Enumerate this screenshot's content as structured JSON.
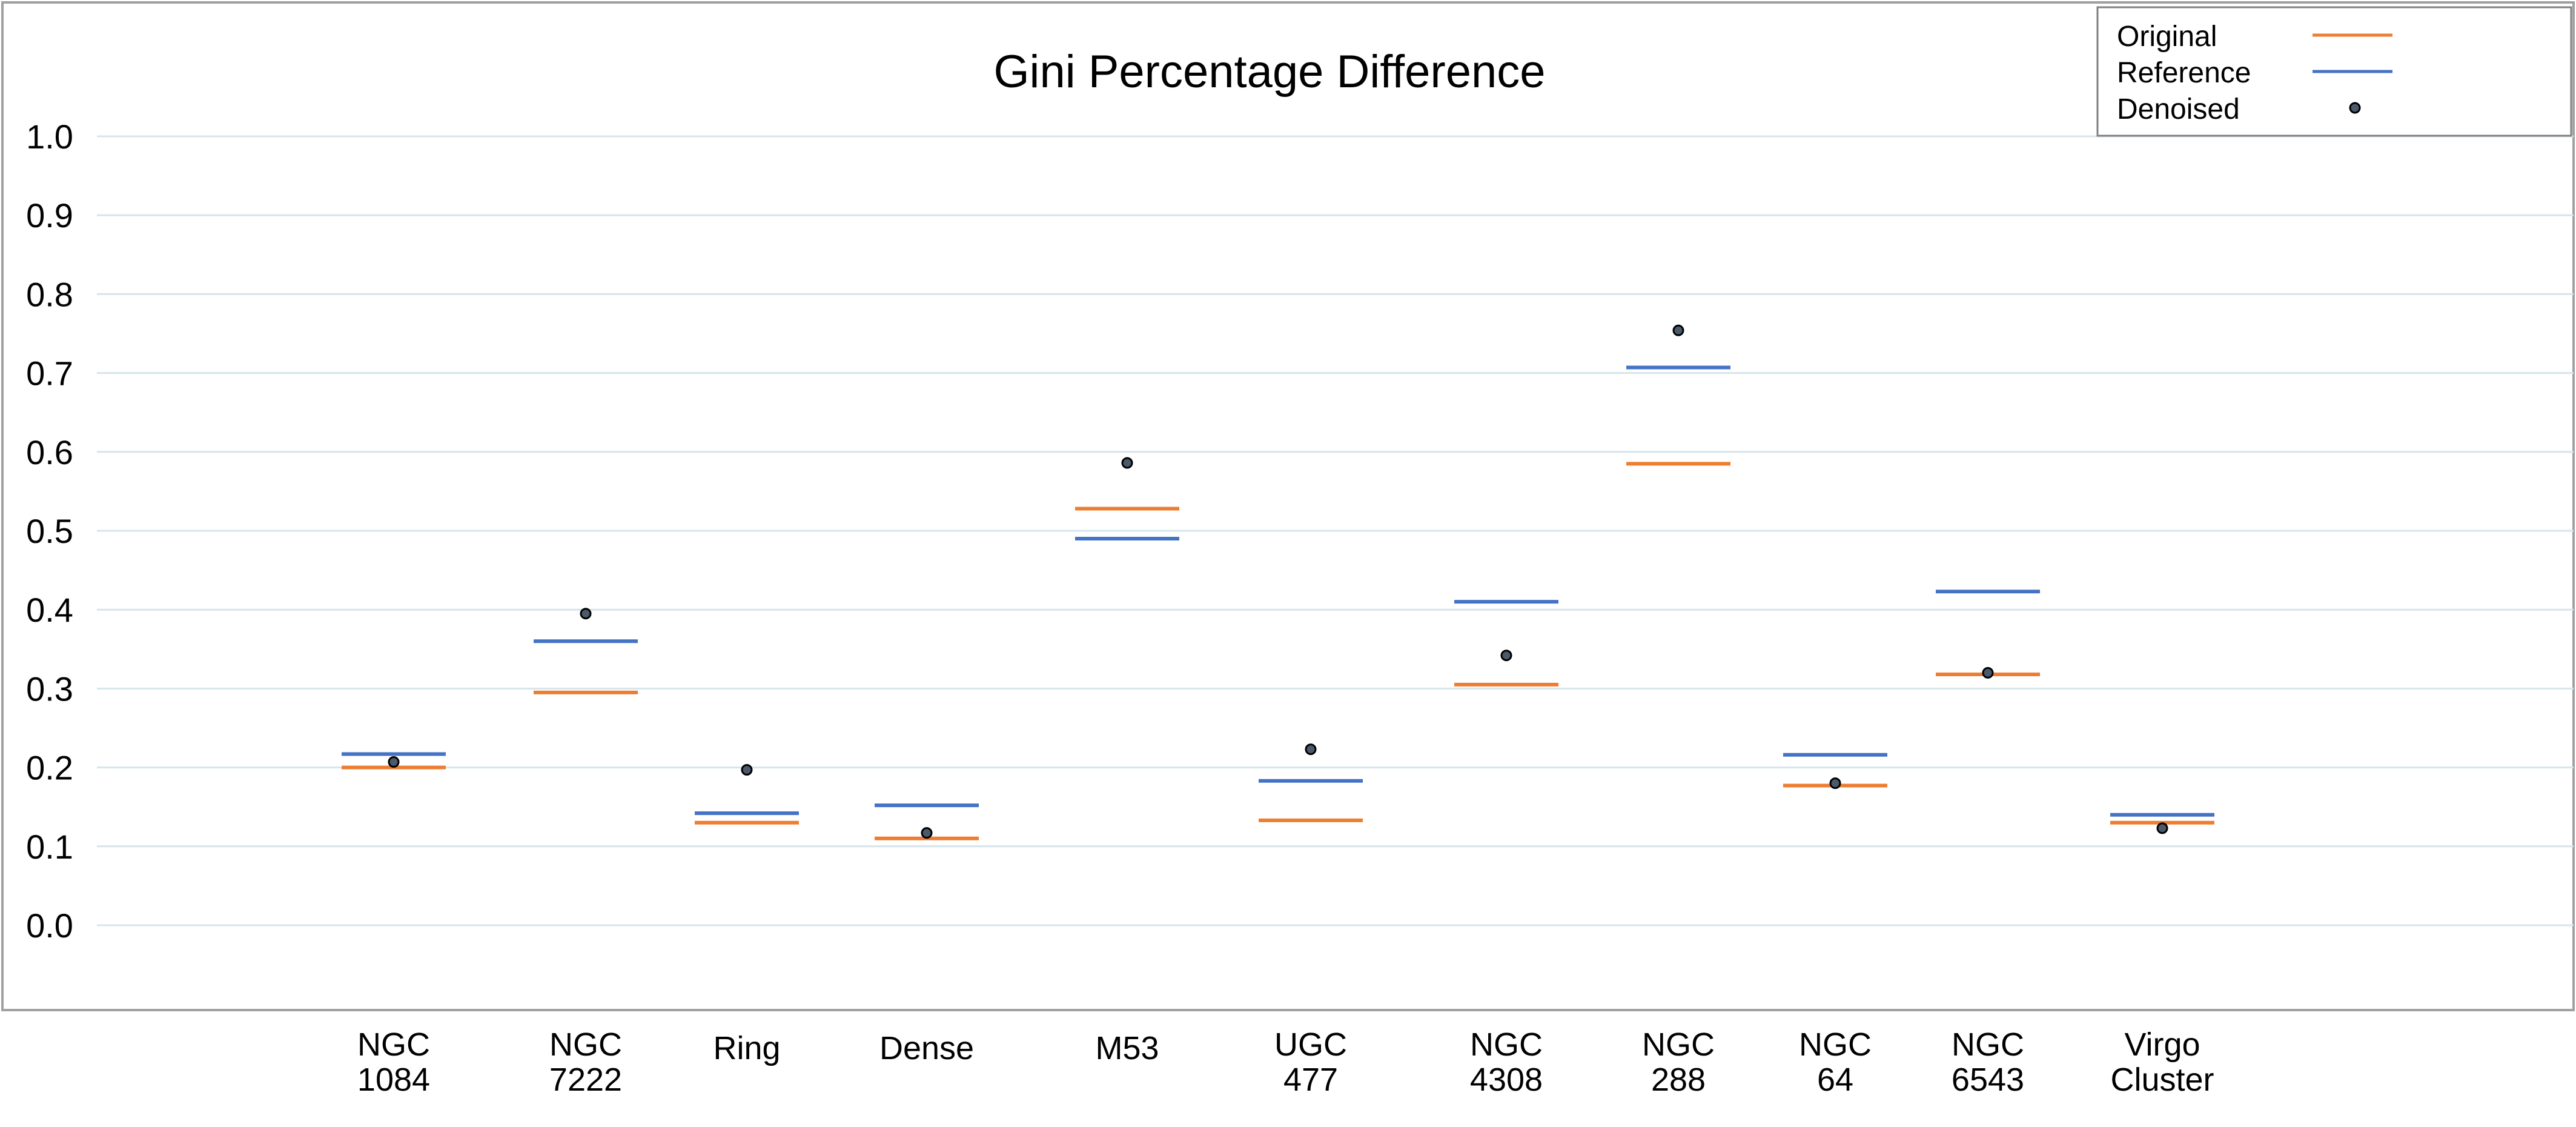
{
  "colors": {
    "original": "#ED7D31",
    "reference": "#4472C4",
    "denoised_fill": "#4A5A6B",
    "grid": "#D6E4EC",
    "frame": "#A0A0A0"
  },
  "chart_data": {
    "type": "scatter",
    "title": "Gini Percentage Difference",
    "xlabel": "",
    "ylabel": "",
    "ylim": [
      -0.1,
      1.1
    ],
    "yticks": [
      "0.0",
      "0.1",
      "0.2",
      "0.3",
      "0.4",
      "0.5",
      "0.6",
      "0.7",
      "0.8",
      "0.9",
      "1.0"
    ],
    "grid": true,
    "legend_position": "top-right",
    "categories": [
      {
        "line1": "NGC",
        "line2": "1084"
      },
      {
        "line1": "NGC",
        "line2": "7222"
      },
      {
        "line1": "Ring",
        "line2": ""
      },
      {
        "line1": "Dense",
        "line2": ""
      },
      {
        "line1": "M53",
        "line2": ""
      },
      {
        "line1": "UGC",
        "line2": "477"
      },
      {
        "line1": "NGC",
        "line2": "4308"
      },
      {
        "line1": "NGC",
        "line2": "288"
      },
      {
        "line1": "NGC",
        "line2": "64"
      },
      {
        "line1": "NGC",
        "line2": "6543"
      },
      {
        "line1": "Virgo",
        "line2": "Cluster"
      }
    ],
    "series": [
      {
        "name": "Original",
        "marker": "dash",
        "values": [
          0.2,
          0.295,
          0.13,
          0.11,
          0.528,
          0.133,
          0.305,
          0.585,
          0.177,
          0.318,
          0.13
        ]
      },
      {
        "name": "Reference",
        "marker": "dash",
        "values": [
          0.217,
          0.36,
          0.142,
          0.152,
          0.49,
          0.183,
          0.41,
          0.707,
          0.216,
          0.423,
          0.14
        ]
      },
      {
        "name": "Denoised",
        "marker": "dot",
        "values": [
          0.207,
          0.395,
          0.197,
          0.117,
          0.586,
          0.223,
          0.342,
          0.754,
          0.18,
          0.32,
          0.123
        ]
      }
    ]
  }
}
